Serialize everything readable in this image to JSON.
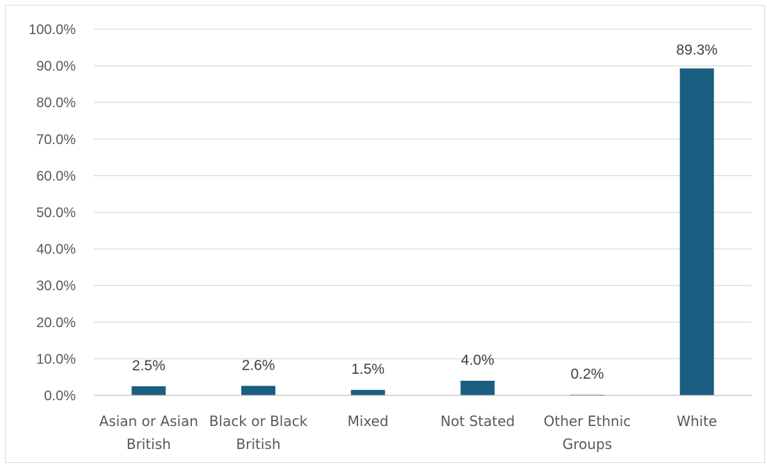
{
  "chart_data": {
    "type": "bar",
    "categories": [
      [
        "Asian or Asian",
        "British"
      ],
      [
        "Black or Black",
        "British"
      ],
      [
        "Mixed"
      ],
      [
        "Not Stated"
      ],
      [
        "Other Ethnic",
        "Groups"
      ],
      [
        "White"
      ]
    ],
    "values": [
      2.5,
      2.6,
      1.5,
      4.0,
      0.2,
      89.3
    ],
    "data_labels": [
      "2.5%",
      "2.6%",
      "1.5%",
      "4.0%",
      "0.2%",
      "89.3%"
    ],
    "y_ticks": [
      "0.0%",
      "10.0%",
      "20.0%",
      "30.0%",
      "40.0%",
      "50.0%",
      "60.0%",
      "70.0%",
      "80.0%",
      "90.0%",
      "100.0%"
    ],
    "ylim": [
      0,
      100
    ],
    "grid": true,
    "legend": "none",
    "title": "",
    "xlabel": "",
    "ylabel": "",
    "bar_color": "#1a5e82"
  }
}
